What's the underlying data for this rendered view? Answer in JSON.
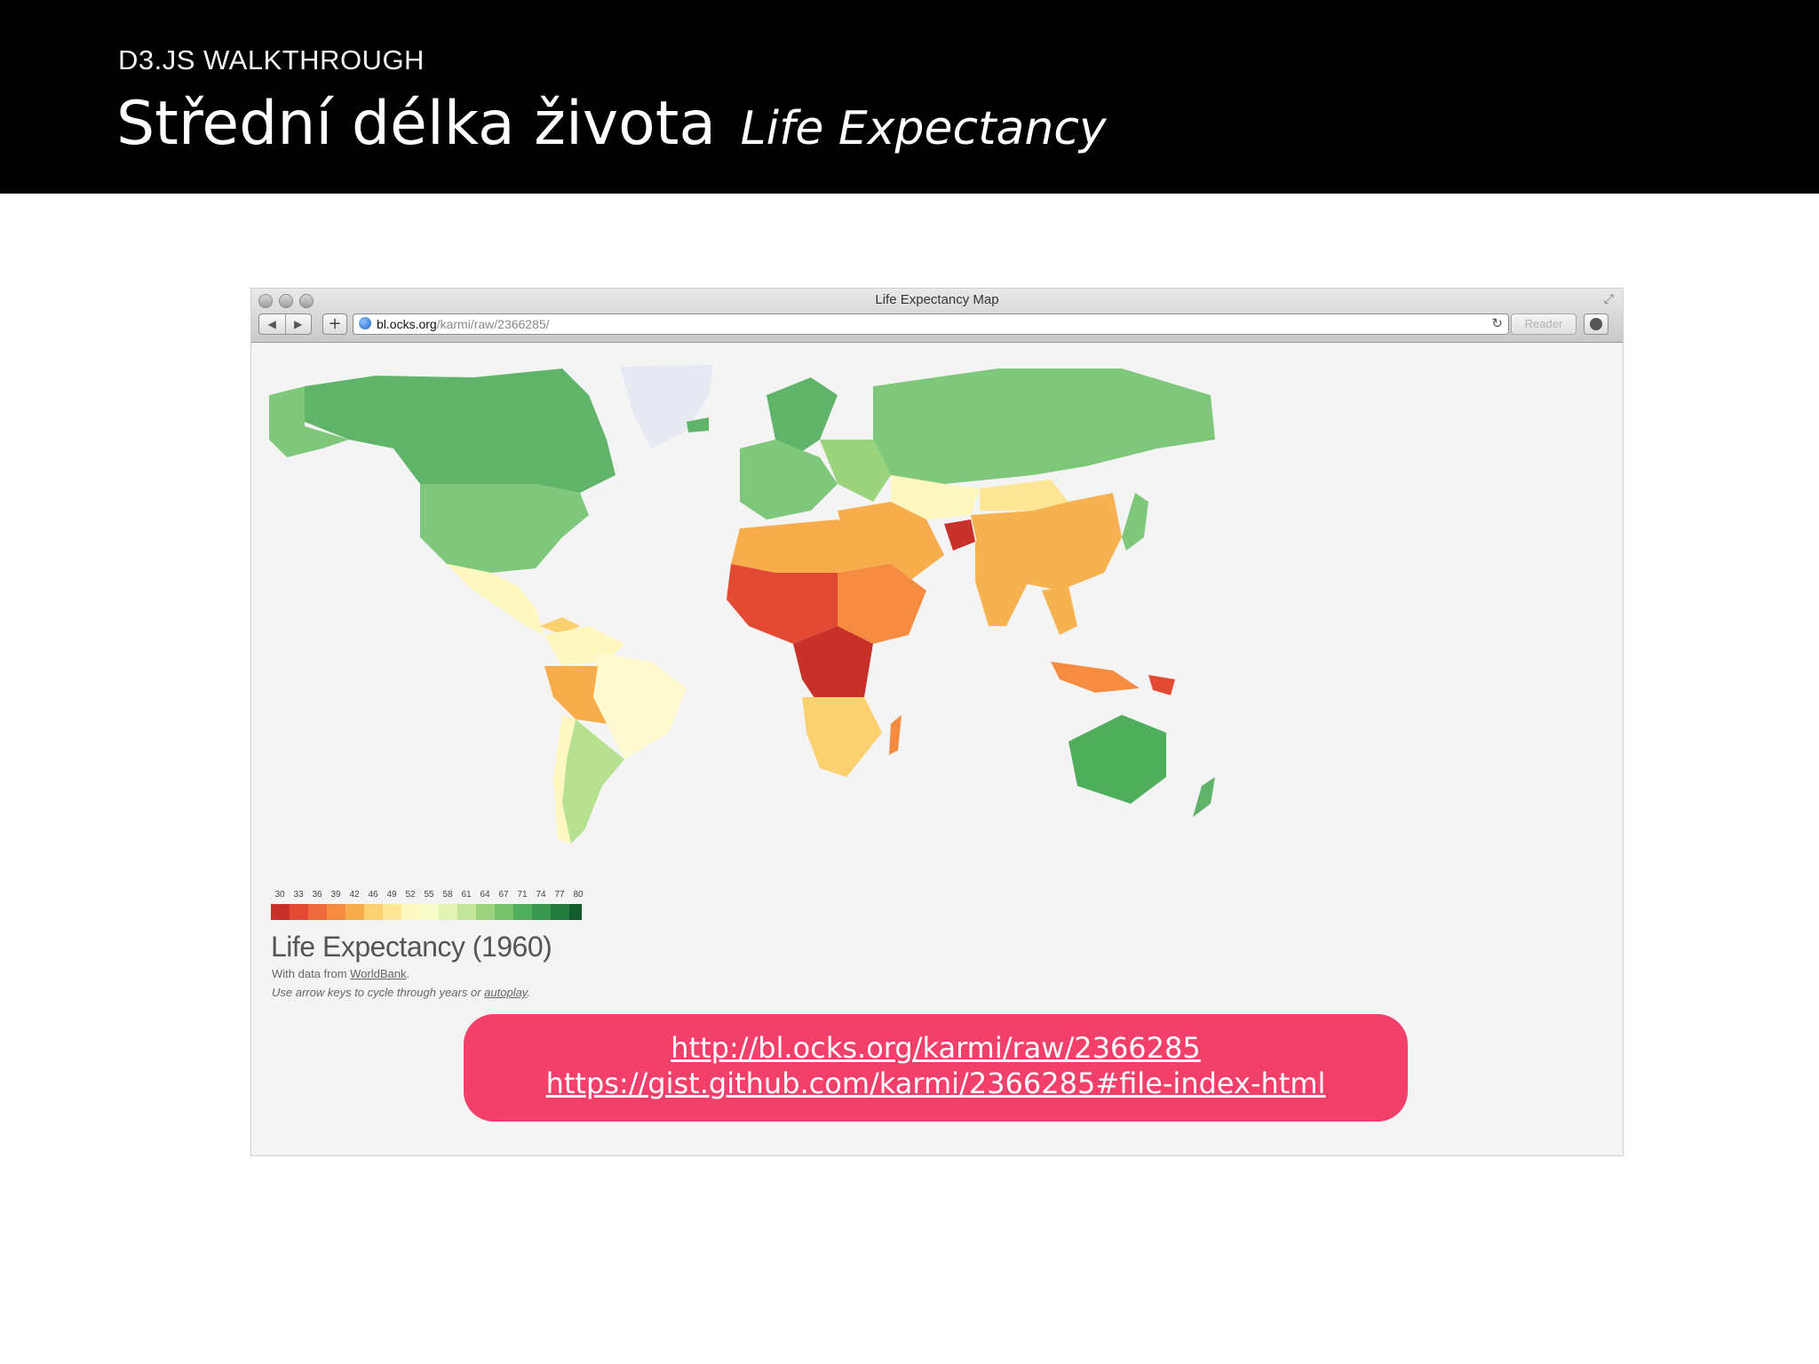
{
  "header": {
    "kicker": "D3.JS WALKTHROUGH",
    "title": "Střední délka života",
    "subtitle": "Life Expectancy"
  },
  "browser": {
    "window_title": "Life Expectancy Map",
    "url_host": "bl.ocks.org",
    "url_path": "/karmi/raw/2366285/",
    "reader_label": "Reader",
    "back_glyph": "◀",
    "forward_glyph": "▶",
    "add_glyph": "+",
    "reload_glyph": "↻",
    "resize_glyph": "⤢"
  },
  "map": {
    "legend_values": [
      "30",
      "33",
      "36",
      "39",
      "42",
      "46",
      "49",
      "52",
      "55",
      "58",
      "61",
      "64",
      "67",
      "71",
      "74",
      "77",
      "80"
    ],
    "legend_colors": [
      "#c8312a",
      "#e34a33",
      "#f06b3b",
      "#f58c42",
      "#f8ad4d",
      "#fbd06e",
      "#fde797",
      "#fff8c2",
      "#f6fbc8",
      "#e3f3b1",
      "#c2e59a",
      "#9bd47d",
      "#74c26a",
      "#4fae5b",
      "#38984d",
      "#217c3d",
      "#135c2c"
    ],
    "title": "Life Expectancy (1960)",
    "credit_prefix": "With data from ",
    "credit_link": "WorldBank",
    "credit_suffix": ".",
    "hint_prefix": "Use arrow keys to cycle through years or ",
    "hint_link": "autoplay",
    "hint_suffix": "."
  },
  "links": [
    "http://bl.ocks.org/karmi/raw/2366285",
    "https://gist.github.com/karmi/2366285#file-index-html"
  ]
}
